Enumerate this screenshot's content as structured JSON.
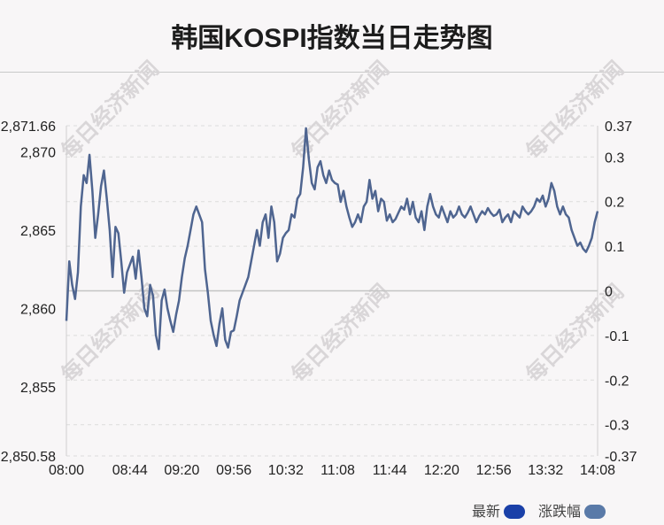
{
  "title": "韩国KOSPI指数当日走势图",
  "watermark": "每日经济新闻",
  "legend": [
    {
      "label": "最新",
      "color": "#1a40a8"
    },
    {
      "label": "涨跌幅",
      "color": "#5a7aa8"
    }
  ],
  "chart_data": {
    "type": "line",
    "title": "韩国KOSPI指数当日走势图",
    "series": [
      {
        "name": "最新",
        "color": "#1a40a8"
      },
      {
        "name": "涨跌幅",
        "color": "#5a7aa8"
      }
    ],
    "line_color": "#4f6590",
    "prev_close": 2861.0,
    "left_axis": {
      "min": 2850.58,
      "max": 2871.66,
      "ticks": [
        "2,871.66",
        "2,870",
        "2,865",
        "2,860",
        "2,855",
        "2,850.58"
      ],
      "tick_values": [
        2871.66,
        2870,
        2865,
        2860,
        2855,
        2850.58
      ]
    },
    "right_axis": {
      "min": -0.37,
      "max": 0.37,
      "ticks": [
        "0.37",
        "0.3",
        "0.2",
        "0.1",
        "0",
        "-0.1",
        "-0.2",
        "-0.3",
        "-0.37"
      ],
      "tick_values": [
        0.37,
        0.3,
        0.2,
        0.1,
        0,
        -0.1,
        -0.2,
        -0.3,
        -0.37
      ]
    },
    "x_ticks": [
      "08:00",
      "08:44",
      "09:20",
      "09:56",
      "10:32",
      "11:08",
      "11:44",
      "12:20",
      "12:56",
      "13:32",
      "14:08"
    ],
    "x_tick_minutes": [
      0,
      44,
      80,
      116,
      152,
      188,
      224,
      260,
      296,
      332,
      368
    ],
    "x_range_minutes": [
      0,
      368
    ],
    "grid": true,
    "legend_position": "bottom-right",
    "points": [
      [
        0,
        2859.2
      ],
      [
        2,
        2863.0
      ],
      [
        4,
        2861.5
      ],
      [
        6,
        2860.6
      ],
      [
        8,
        2862.3
      ],
      [
        10,
        2866.5
      ],
      [
        12,
        2868.5
      ],
      [
        14,
        2868.0
      ],
      [
        16,
        2869.8
      ],
      [
        18,
        2867.5
      ],
      [
        20,
        2864.5
      ],
      [
        22,
        2866.0
      ],
      [
        24,
        2867.8
      ],
      [
        26,
        2868.8
      ],
      [
        28,
        2867.0
      ],
      [
        30,
        2865.0
      ],
      [
        32,
        2862.0
      ],
      [
        34,
        2865.2
      ],
      [
        36,
        2864.8
      ],
      [
        38,
        2863.0
      ],
      [
        40,
        2861.0
      ],
      [
        42,
        2862.3
      ],
      [
        44,
        2862.8
      ],
      [
        46,
        2863.3
      ],
      [
        48,
        2861.9
      ],
      [
        50,
        2863.7
      ],
      [
        52,
        2862.0
      ],
      [
        54,
        2860.0
      ],
      [
        56,
        2859.5
      ],
      [
        58,
        2861.5
      ],
      [
        60,
        2860.8
      ],
      [
        62,
        2858.3
      ],
      [
        64,
        2857.4
      ],
      [
        66,
        2860.5
      ],
      [
        68,
        2861.2
      ],
      [
        70,
        2860.0
      ],
      [
        72,
        2859.2
      ],
      [
        74,
        2858.5
      ],
      [
        76,
        2859.6
      ],
      [
        78,
        2860.5
      ],
      [
        80,
        2862.0
      ],
      [
        82,
        2863.2
      ],
      [
        84,
        2864.0
      ],
      [
        86,
        2865.0
      ],
      [
        88,
        2866.0
      ],
      [
        90,
        2866.5
      ],
      [
        92,
        2866.0
      ],
      [
        94,
        2865.5
      ],
      [
        96,
        2862.5
      ],
      [
        98,
        2861.0
      ],
      [
        100,
        2859.2
      ],
      [
        102,
        2858.3
      ],
      [
        104,
        2857.6
      ],
      [
        106,
        2859.0
      ],
      [
        108,
        2860.0
      ],
      [
        110,
        2858.0
      ],
      [
        112,
        2857.5
      ],
      [
        114,
        2858.5
      ],
      [
        116,
        2858.6
      ],
      [
        118,
        2859.5
      ],
      [
        120,
        2860.5
      ],
      [
        122,
        2861.0
      ],
      [
        124,
        2861.5
      ],
      [
        126,
        2862.0
      ],
      [
        128,
        2863.0
      ],
      [
        130,
        2864.0
      ],
      [
        132,
        2865.0
      ],
      [
        134,
        2864.0
      ],
      [
        136,
        2865.5
      ],
      [
        138,
        2866.0
      ],
      [
        140,
        2864.5
      ],
      [
        142,
        2866.5
      ],
      [
        144,
        2865.5
      ],
      [
        146,
        2863.0
      ],
      [
        148,
        2863.5
      ],
      [
        150,
        2864.5
      ],
      [
        152,
        2864.8
      ],
      [
        154,
        2865.0
      ],
      [
        156,
        2866.0
      ],
      [
        158,
        2865.8
      ],
      [
        160,
        2867.0
      ],
      [
        162,
        2867.3
      ],
      [
        164,
        2869.0
      ],
      [
        166,
        2871.5
      ],
      [
        168,
        2869.5
      ],
      [
        170,
        2868.0
      ],
      [
        172,
        2867.6
      ],
      [
        174,
        2869.0
      ],
      [
        176,
        2869.4
      ],
      [
        178,
        2868.5
      ],
      [
        180,
        2868.0
      ],
      [
        182,
        2868.8
      ],
      [
        184,
        2868.2
      ],
      [
        186,
        2868.0
      ],
      [
        188,
        2867.9
      ],
      [
        190,
        2866.8
      ],
      [
        192,
        2867.5
      ],
      [
        194,
        2866.5
      ],
      [
        196,
        2865.8
      ],
      [
        198,
        2865.2
      ],
      [
        200,
        2865.5
      ],
      [
        202,
        2866.0
      ],
      [
        204,
        2865.5
      ],
      [
        206,
        2866.5
      ],
      [
        208,
        2866.8
      ],
      [
        210,
        2868.2
      ],
      [
        212,
        2867.0
      ],
      [
        214,
        2867.5
      ],
      [
        216,
        2866.2
      ],
      [
        218,
        2867.0
      ],
      [
        220,
        2866.8
      ],
      [
        222,
        2865.6
      ],
      [
        224,
        2866.0
      ],
      [
        226,
        2865.5
      ],
      [
        228,
        2865.7
      ],
      [
        230,
        2866.1
      ],
      [
        232,
        2866.5
      ],
      [
        234,
        2866.3
      ],
      [
        236,
        2867.0
      ],
      [
        238,
        2866.0
      ],
      [
        240,
        2866.8
      ],
      [
        242,
        2865.8
      ],
      [
        244,
        2865.5
      ],
      [
        246,
        2866.2
      ],
      [
        248,
        2865.0
      ],
      [
        250,
        2866.5
      ],
      [
        252,
        2867.3
      ],
      [
        254,
        2866.5
      ],
      [
        256,
        2866.0
      ],
      [
        258,
        2865.8
      ],
      [
        260,
        2866.5
      ],
      [
        262,
        2866.0
      ],
      [
        264,
        2865.5
      ],
      [
        266,
        2866.2
      ],
      [
        268,
        2865.8
      ],
      [
        270,
        2866.0
      ],
      [
        272,
        2866.5
      ],
      [
        274,
        2866.0
      ],
      [
        276,
        2865.8
      ],
      [
        278,
        2866.1
      ],
      [
        280,
        2866.5
      ],
      [
        282,
        2866.0
      ],
      [
        284,
        2865.5
      ],
      [
        286,
        2865.9
      ],
      [
        288,
        2866.2
      ],
      [
        290,
        2866.0
      ],
      [
        292,
        2866.4
      ],
      [
        294,
        2866.1
      ],
      [
        296,
        2865.9
      ],
      [
        298,
        2866.0
      ],
      [
        300,
        2866.3
      ],
      [
        302,
        2865.5
      ],
      [
        304,
        2865.8
      ],
      [
        306,
        2866.0
      ],
      [
        308,
        2865.5
      ],
      [
        310,
        2866.2
      ],
      [
        312,
        2866.0
      ],
      [
        314,
        2865.8
      ],
      [
        316,
        2866.5
      ],
      [
        318,
        2866.2
      ],
      [
        320,
        2866.0
      ],
      [
        322,
        2866.2
      ],
      [
        324,
        2866.5
      ],
      [
        326,
        2867.0
      ],
      [
        328,
        2866.8
      ],
      [
        330,
        2867.2
      ],
      [
        332,
        2866.5
      ],
      [
        334,
        2867.0
      ],
      [
        336,
        2868.0
      ],
      [
        338,
        2867.5
      ],
      [
        340,
        2866.5
      ],
      [
        342,
        2866.0
      ],
      [
        344,
        2866.5
      ],
      [
        346,
        2866.0
      ],
      [
        348,
        2865.8
      ],
      [
        350,
        2865.0
      ],
      [
        352,
        2864.5
      ],
      [
        354,
        2864.0
      ],
      [
        356,
        2864.2
      ],
      [
        358,
        2863.8
      ],
      [
        360,
        2863.6
      ],
      [
        362,
        2864.0
      ],
      [
        364,
        2864.5
      ],
      [
        366,
        2865.5
      ],
      [
        368,
        2866.2
      ]
    ]
  }
}
